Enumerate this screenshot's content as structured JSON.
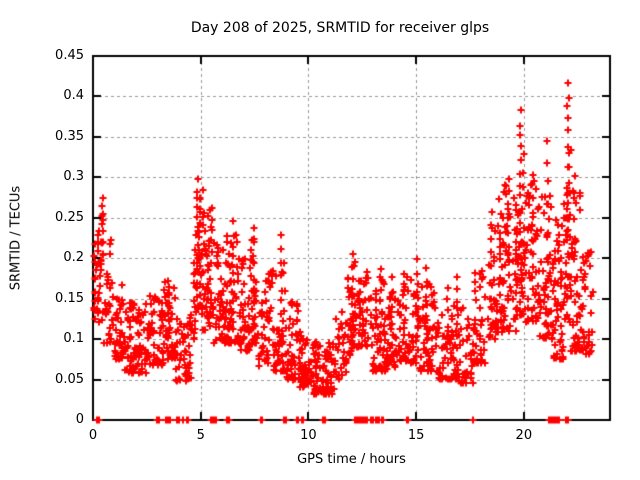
{
  "chart_data": {
    "type": "scatter",
    "title": "Day 208 of 2025, SRMTID for receiver glps",
    "xlabel": "GPS time / hours",
    "ylabel": "SRMTID / TECUs",
    "xlim": [
      0,
      24
    ],
    "ylim": [
      0,
      0.45
    ],
    "xticks": [
      0,
      5,
      10,
      15,
      20
    ],
    "xtick_labels": [
      "0",
      "5",
      "10",
      "15",
      "20"
    ],
    "yticks": [
      0,
      0.05,
      0.1,
      0.15,
      0.2,
      0.25,
      0.3,
      0.35,
      0.4,
      0.45
    ],
    "ytick_labels": [
      "0",
      "0.05",
      "0.1",
      "0.15",
      "0.2",
      "0.25",
      "0.3",
      "0.35",
      "0.4",
      "0.45"
    ],
    "grid": true,
    "legend": null,
    "grid_color": "#999999",
    "axis_color": "#000000",
    "marker": {
      "shape": "plus",
      "color": "#ff0000",
      "size": 7
    },
    "bands": [
      [
        0.0,
        0.18,
        0.115,
        0.225,
        14,
        1.0
      ],
      [
        0.18,
        0.5,
        0.12,
        0.262,
        26,
        1.2
      ],
      [
        0.5,
        0.9,
        0.095,
        0.24,
        26,
        1.5
      ],
      [
        0.9,
        1.45,
        0.075,
        0.17,
        42,
        1.5
      ],
      [
        1.45,
        2.6,
        0.058,
        0.145,
        85,
        1.4
      ],
      [
        2.6,
        3.3,
        0.068,
        0.155,
        55,
        1.5
      ],
      [
        3.3,
        3.85,
        0.075,
        0.175,
        42,
        1.5
      ],
      [
        3.85,
        4.55,
        0.048,
        0.135,
        46,
        1.4
      ],
      [
        4.55,
        4.8,
        0.1,
        0.22,
        16,
        1.5
      ],
      [
        4.8,
        5.1,
        0.13,
        0.285,
        24,
        1.5
      ],
      [
        5.1,
        5.6,
        0.11,
        0.26,
        30,
        1.7
      ],
      [
        5.6,
        6.2,
        0.095,
        0.225,
        45,
        1.6
      ],
      [
        6.2,
        6.8,
        0.095,
        0.23,
        46,
        1.6
      ],
      [
        6.8,
        7.3,
        0.085,
        0.2,
        40,
        1.5
      ],
      [
        7.3,
        7.7,
        0.09,
        0.225,
        26,
        1.6
      ],
      [
        7.7,
        8.4,
        0.065,
        0.185,
        46,
        1.6
      ],
      [
        8.4,
        9.0,
        0.06,
        0.2,
        40,
        1.8
      ],
      [
        9.0,
        9.6,
        0.05,
        0.148,
        40,
        1.5
      ],
      [
        9.6,
        10.1,
        0.04,
        0.112,
        40,
        1.4
      ],
      [
        10.1,
        11.25,
        0.032,
        0.098,
        90,
        1.2
      ],
      [
        11.25,
        11.75,
        0.05,
        0.135,
        28,
        1.4
      ],
      [
        11.75,
        12.25,
        0.08,
        0.2,
        34,
        1.6
      ],
      [
        12.25,
        12.85,
        0.09,
        0.2,
        42,
        1.5
      ],
      [
        12.85,
        13.65,
        0.06,
        0.178,
        56,
        1.6
      ],
      [
        13.65,
        14.35,
        0.065,
        0.16,
        50,
        1.5
      ],
      [
        14.35,
        15.15,
        0.07,
        0.185,
        46,
        1.7
      ],
      [
        15.15,
        15.95,
        0.06,
        0.17,
        50,
        1.6
      ],
      [
        15.95,
        16.85,
        0.05,
        0.145,
        50,
        1.5
      ],
      [
        16.85,
        17.65,
        0.045,
        0.14,
        38,
        1.5
      ],
      [
        17.65,
        18.35,
        0.07,
        0.205,
        40,
        1.6
      ],
      [
        18.35,
        19.05,
        0.1,
        0.26,
        46,
        1.7
      ],
      [
        19.05,
        19.65,
        0.11,
        0.3,
        36,
        1.7
      ],
      [
        19.65,
        20.05,
        0.13,
        0.31,
        28,
        1.6
      ],
      [
        20.05,
        20.75,
        0.12,
        0.295,
        52,
        1.6
      ],
      [
        20.75,
        21.35,
        0.1,
        0.285,
        46,
        1.7
      ],
      [
        21.35,
        21.85,
        0.075,
        0.25,
        50,
        1.4
      ],
      [
        21.85,
        22.15,
        0.12,
        0.3,
        24,
        1.5
      ],
      [
        22.15,
        22.7,
        0.085,
        0.285,
        46,
        1.7
      ],
      [
        22.7,
        23.2,
        0.08,
        0.208,
        36,
        1.3
      ]
    ],
    "columns": [
      [
        0.42,
        0.2,
        0.272,
        10
      ],
      [
        3.5,
        0.1,
        0.176,
        8
      ],
      [
        4.85,
        0.15,
        0.296,
        14
      ],
      [
        4.95,
        0.14,
        0.272,
        10
      ],
      [
        5.35,
        0.15,
        0.225,
        8
      ],
      [
        5.48,
        0.13,
        0.265,
        10
      ],
      [
        6.5,
        0.11,
        0.242,
        12
      ],
      [
        7.45,
        0.1,
        0.237,
        10
      ],
      [
        8.75,
        0.08,
        0.228,
        10
      ],
      [
        12.05,
        0.1,
        0.207,
        8
      ],
      [
        13.35,
        0.09,
        0.188,
        8
      ],
      [
        13.85,
        0.08,
        0.175,
        7
      ],
      [
        14.45,
        0.08,
        0.17,
        7
      ],
      [
        15.05,
        0.1,
        0.196,
        8
      ],
      [
        15.5,
        0.09,
        0.188,
        7
      ],
      [
        16.45,
        0.07,
        0.165,
        7
      ],
      [
        16.9,
        0.07,
        0.18,
        8
      ],
      [
        18.5,
        0.12,
        0.255,
        9
      ],
      [
        18.88,
        0.12,
        0.272,
        9
      ],
      [
        19.3,
        0.15,
        0.298,
        10
      ],
      [
        19.6,
        0.14,
        0.275,
        8
      ],
      [
        19.85,
        0.17,
        0.38,
        15
      ],
      [
        19.95,
        0.15,
        0.332,
        9
      ],
      [
        20.4,
        0.16,
        0.306,
        10
      ],
      [
        21.1,
        0.13,
        0.342,
        10
      ],
      [
        22.05,
        0.22,
        0.417,
        14
      ],
      [
        22.15,
        0.15,
        0.336,
        8
      ],
      [
        22.35,
        0.12,
        0.3,
        8
      ]
    ],
    "zeros": [
      0.2,
      0.24,
      0.28,
      2.95,
      3.0,
      3.05,
      3.4,
      3.45,
      3.53,
      3.57,
      3.9,
      3.94,
      3.98,
      4.16,
      4.2,
      4.37,
      4.41,
      5.5,
      5.54,
      5.58,
      5.68,
      5.72,
      6.2,
      6.24,
      6.28,
      6.32,
      7.8,
      7.84,
      8.86,
      8.9,
      8.94,
      9.48,
      9.52,
      9.72,
      9.76,
      10.68,
      10.72,
      10.76,
      12.14,
      12.18,
      12.22,
      12.26,
      12.34,
      12.38,
      12.46,
      12.5,
      12.58,
      12.62,
      12.7,
      12.74,
      12.9,
      12.94,
      12.98,
      13.02,
      13.12,
      13.16,
      13.24,
      13.28,
      13.42,
      13.46,
      14.56,
      14.6,
      17.62,
      17.66,
      21.18,
      21.22,
      21.26,
      21.34,
      21.38,
      21.46,
      21.5,
      21.58,
      21.62,
      21.94,
      21.98,
      22.06
    ]
  }
}
